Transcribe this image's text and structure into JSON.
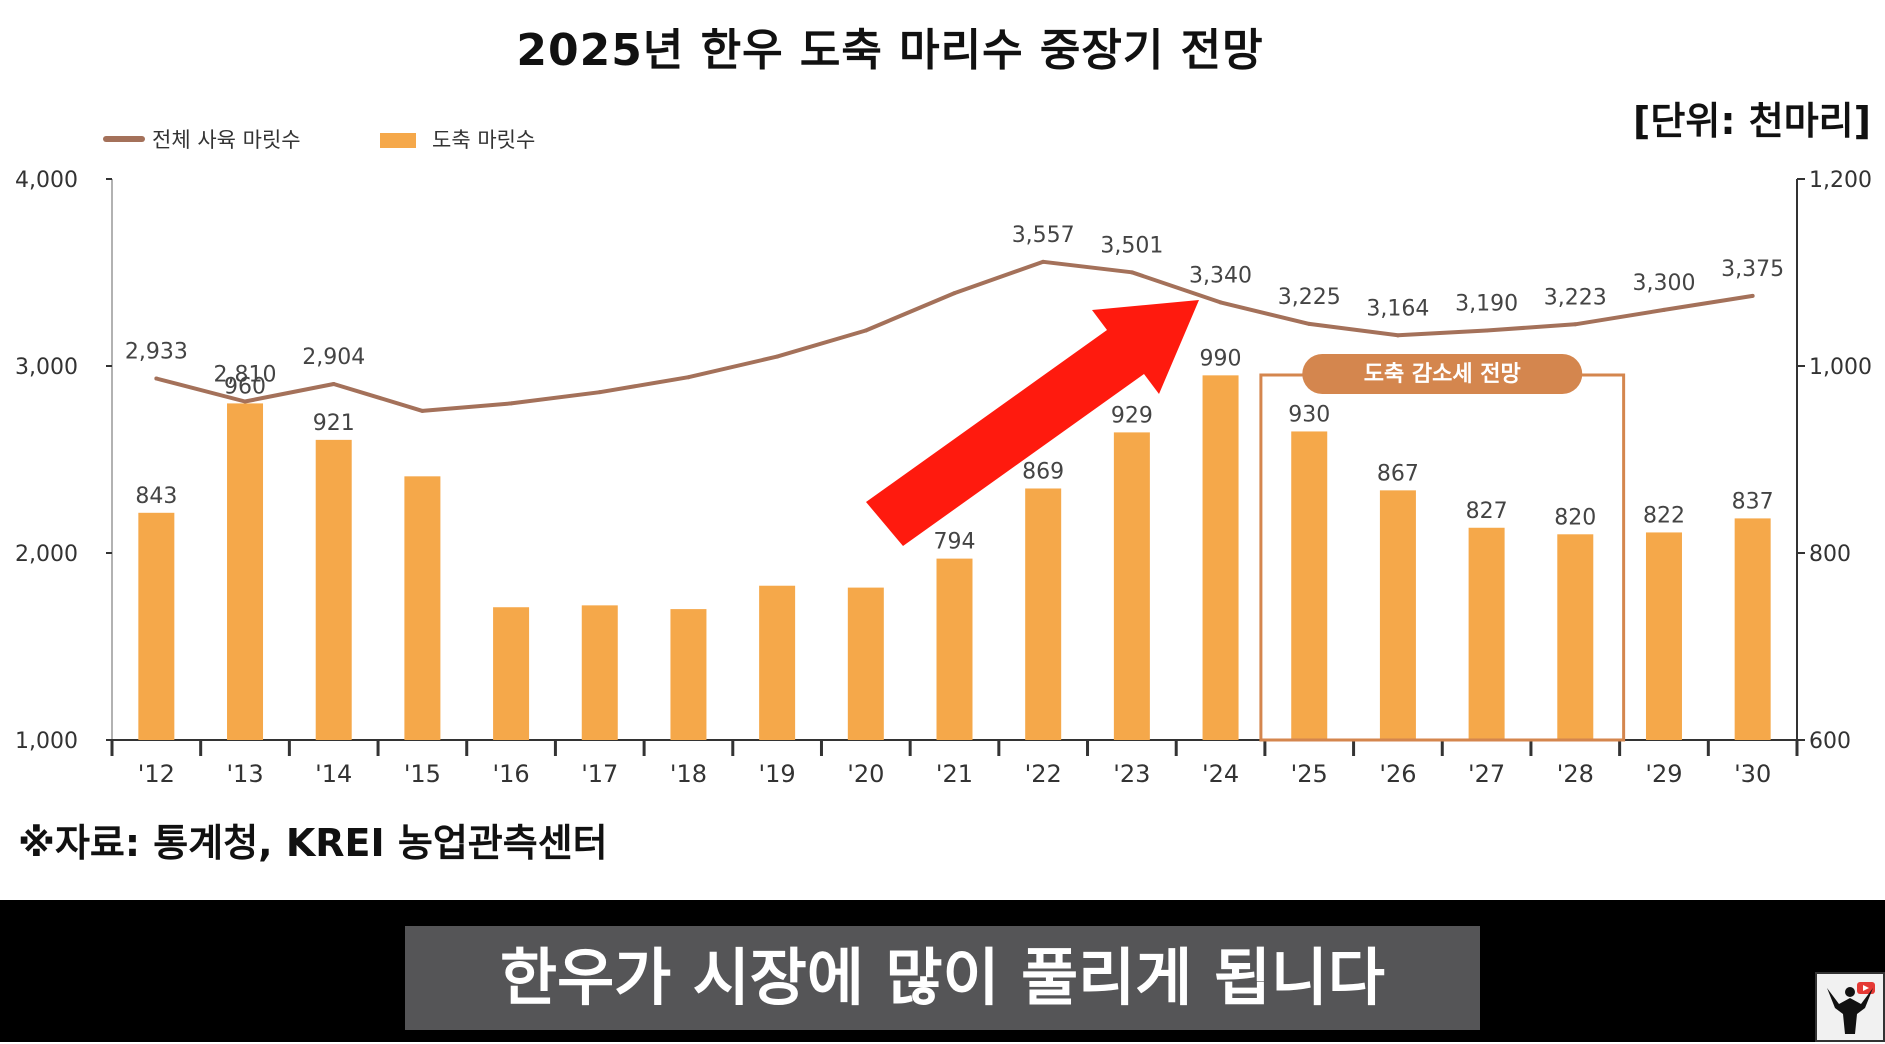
{
  "title": "2025년 한우 도축 마리수 중장기 전망",
  "unit": "[단위: 천마리]",
  "source": "※자료: 통계청, KREI 농업관측센터",
  "subtitle": "한우가 시장에 많이 풀리게 됩니다",
  "annotation_box_label": "도축 감소세 전망",
  "colors": {
    "bar": "#F5A84A",
    "line": "#A4715A",
    "box": "#D4864E",
    "arrow": "#FF1A0E"
  },
  "icons": [
    "arrow-icon",
    "channel-logo-icon"
  ],
  "chart_data": {
    "type": "bar",
    "categories": [
      "'12",
      "'13",
      "'14",
      "'15",
      "'16",
      "'17",
      "'18",
      "'19",
      "'20",
      "'21",
      "'22",
      "'23",
      "'24",
      "'25",
      "'26",
      "'27",
      "'28",
      "'29",
      "'30"
    ],
    "series": [
      {
        "name": "도축 마릿수",
        "axis": "right",
        "type": "bar",
        "values": [
          843,
          960,
          921,
          882,
          742,
          744,
          740,
          765,
          763,
          794,
          869,
          929,
          990,
          930,
          867,
          827,
          820,
          822,
          837
        ],
        "labels": [
          "843",
          "960",
          "921",
          "",
          "",
          "",
          "",
          "",
          "",
          "794",
          "869",
          "929",
          "990",
          "930",
          "867",
          "827",
          "820",
          "822",
          "837"
        ]
      },
      {
        "name": "전체 사육 마릿수",
        "axis": "left",
        "type": "line",
        "values": [
          2933,
          2810,
          2904,
          2760,
          2800,
          2860,
          2940,
          3050,
          3190,
          3390,
          3557,
          3501,
          3340,
          3225,
          3164,
          3190,
          3223,
          3300,
          3375
        ],
        "labels": [
          "2,933",
          "2,810",
          "2,904",
          "",
          "",
          "",
          "",
          "",
          "",
          "",
          "3,557",
          "3,501",
          "3,340",
          "3,225",
          "3,164",
          "3,190",
          "3,223",
          "3,300",
          "3,375"
        ]
      }
    ],
    "yleft": {
      "ylim": [
        1000,
        4000
      ],
      "ticks": [
        "1,000",
        "2,000",
        "3,000",
        "4,000"
      ]
    },
    "yright": {
      "ylim": [
        600,
        1200
      ],
      "ticks": [
        "600",
        "800",
        "1,000",
        "1,200"
      ]
    },
    "legend": {
      "position": "top-left",
      "entries": [
        "전체 사육 마릿수",
        "도축 마릿수"
      ]
    }
  }
}
